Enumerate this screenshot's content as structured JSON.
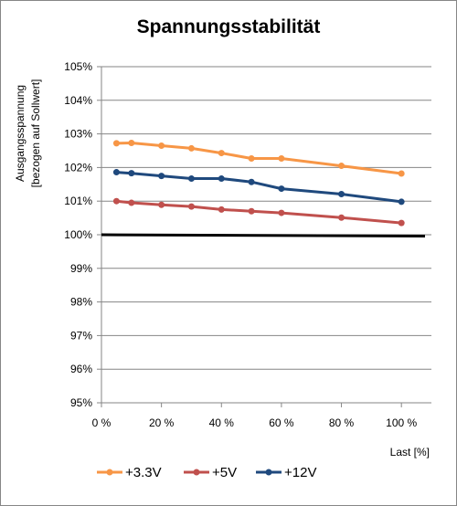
{
  "chart_data": {
    "type": "line",
    "title": "Spannungsstabilität",
    "ylabel_lines": [
      "Ausgangsspannung",
      "[bezogen auf Sollwert]"
    ],
    "xlabel": "Last [%]",
    "x_ticks": [
      "0 %",
      "20 %",
      "40 %",
      "60 %",
      "80 %",
      "100 %"
    ],
    "x_tick_values": [
      0,
      20,
      40,
      60,
      80,
      100
    ],
    "y_ticks": [
      "95%",
      "96%",
      "97%",
      "98%",
      "99%",
      "100%",
      "101%",
      "102%",
      "103%",
      "104%",
      "105%"
    ],
    "y_tick_values": [
      95,
      96,
      97,
      98,
      99,
      100,
      101,
      102,
      103,
      104,
      105
    ],
    "xlim": [
      0,
      110
    ],
    "ylim": [
      95,
      105
    ],
    "x_unit": "%",
    "y_unit": "%",
    "grid": "horizontal",
    "legend_position": "bottom",
    "reference_line": {
      "y": 100,
      "color": "#000000"
    },
    "x": [
      5,
      10,
      20,
      30,
      40,
      50,
      60,
      80,
      100
    ],
    "series": [
      {
        "name": "+3.3V",
        "color": "#f79646",
        "values": [
          102.72,
          102.73,
          102.65,
          102.57,
          102.43,
          102.27,
          102.27,
          102.05,
          101.82
        ]
      },
      {
        "name": "+5V",
        "color": "#c0504d",
        "values": [
          101.0,
          100.95,
          100.89,
          100.84,
          100.75,
          100.7,
          100.65,
          100.51,
          100.35
        ]
      },
      {
        "name": "+12V",
        "color": "#1f497d",
        "values": [
          101.86,
          101.83,
          101.75,
          101.67,
          101.67,
          101.57,
          101.37,
          101.21,
          100.98
        ]
      }
    ]
  }
}
